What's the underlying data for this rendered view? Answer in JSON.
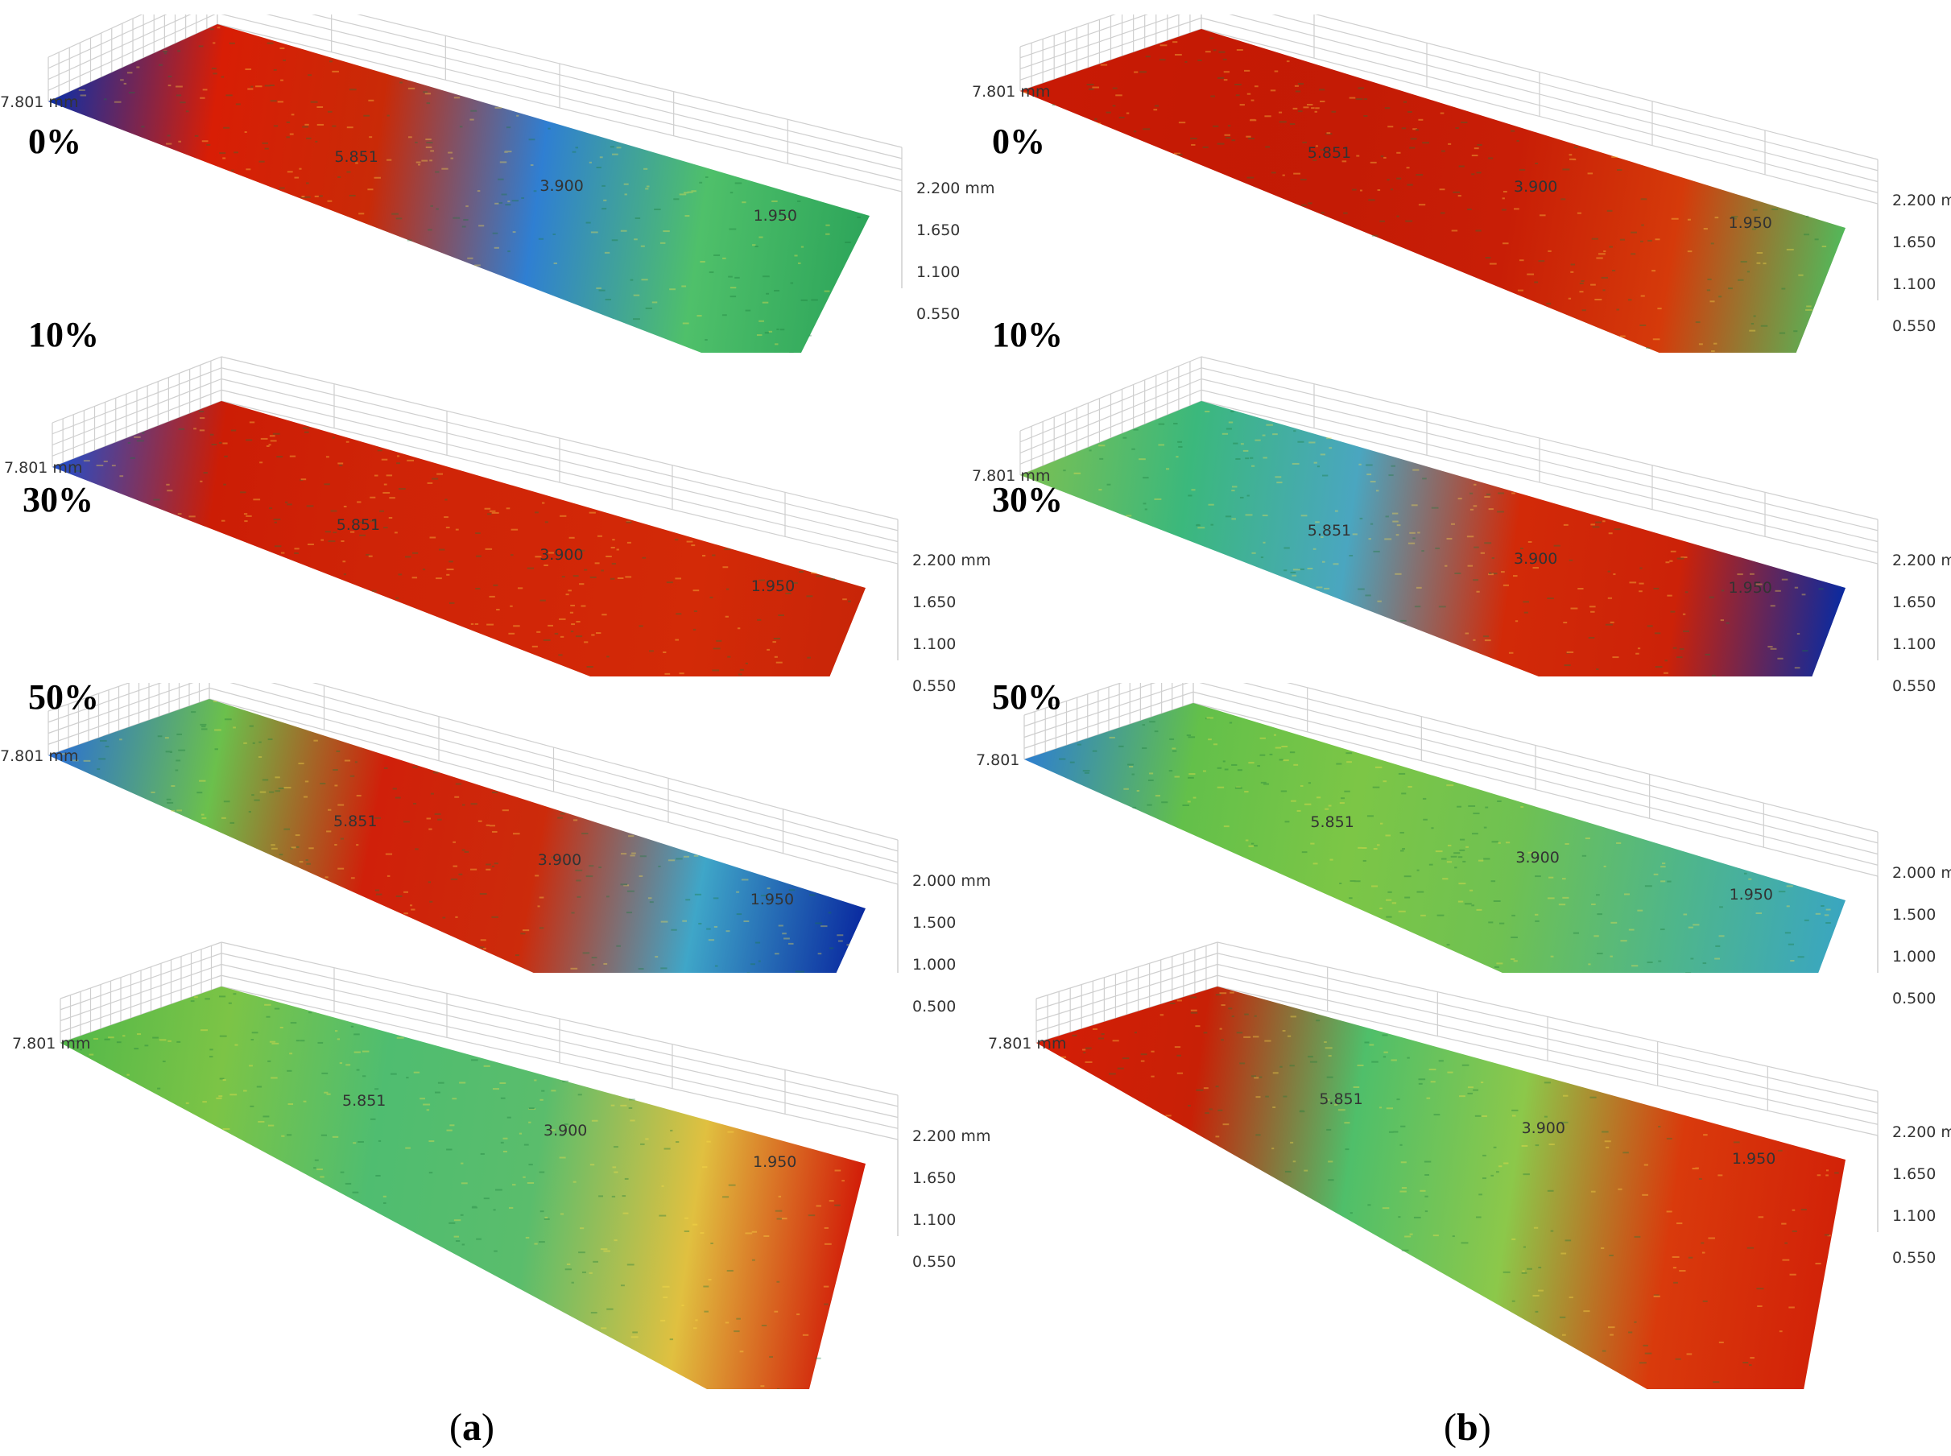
{
  "figure": {
    "subfigures": [
      {
        "caption": {
          "open": "(",
          "letter": "a",
          "close": ")"
        },
        "panels": [
          {
            "label": "0%",
            "y_ticks": [
              "7.801 mm",
              "5.851",
              "3.900",
              "1.950"
            ],
            "z_ticks": [
              "2.200 mm",
              "1.650",
              "1.100",
              "0.550"
            ],
            "colors": [
              "#0a2ea8",
              "#d81e05",
              "#c92a07",
              "#2f7fd2",
              "#4fc06a",
              "#2da55a"
            ]
          },
          {
            "label": "10%",
            "y_ticks": [
              "7.801 mm",
              "5.851",
              "3.900",
              "1.950"
            ],
            "z_ticks": [
              "2.200 mm",
              "1.650",
              "1.100",
              "0.550"
            ],
            "colors": [
              "#1e4fd0",
              "#cc1d05",
              "#cf2407",
              "#d12607",
              "#d32a07",
              "#c82508"
            ]
          },
          {
            "label": "30%",
            "y_ticks": [
              "7.801 mm",
              "5.851",
              "3.900",
              "1.950"
            ],
            "z_ticks": [
              "2.000 mm",
              "1.500",
              "1.000",
              "0.500"
            ],
            "colors": [
              "#2a6fd6",
              "#6bc04c",
              "#d0200a",
              "#cc2b0b",
              "#3fa6c8",
              "#0a2aa0"
            ]
          },
          {
            "label": "50%",
            "y_ticks": [
              "7.801 mm",
              "5.851",
              "3.900",
              "1.950"
            ],
            "z_ticks": [
              "2.200 mm",
              "1.650",
              "1.100",
              "0.550"
            ],
            "colors": [
              "#53b84a",
              "#7cc446",
              "#4fbd70",
              "#5abd6c",
              "#e0c040",
              "#d21c08"
            ]
          }
        ]
      },
      {
        "caption": {
          "open": "(",
          "letter": "b",
          "close": ")"
        },
        "panels": [
          {
            "label": "0%",
            "y_ticks": [
              "7.801 mm",
              "5.851",
              "3.900",
              "1.950"
            ],
            "z_ticks": [
              "2.200 mm",
              "1.650",
              "1.100",
              "0.550"
            ],
            "colors": [
              "#c91a05",
              "#c51a04",
              "#c41b05",
              "#c81e06",
              "#d53a0a",
              "#53b85a"
            ]
          },
          {
            "label": "10%",
            "y_ticks": [
              "7.801 mm",
              "5.851",
              "3.900",
              "1.950"
            ],
            "z_ticks": [
              "2.200 mm",
              "1.650",
              "1.100",
              "0.550"
            ],
            "colors": [
              "#7cc052",
              "#3bb87c",
              "#4aa6c0",
              "#d22a08",
              "#cc2208",
              "#0a2aa0"
            ]
          },
          {
            "label": "30%",
            "y_ticks": [
              "7.801",
              "5.851",
              "3.900",
              "1.950"
            ],
            "z_ticks": [
              "2.000 mm",
              "1.500",
              "1.000",
              "0.500"
            ],
            "colors": [
              "#2e7fd0",
              "#63c04a",
              "#7cc646",
              "#6fc152",
              "#4fb68a",
              "#3aa6c0"
            ]
          },
          {
            "label": "50%",
            "y_ticks": [
              "7.801 mm",
              "5.851",
              "3.900",
              "1.950"
            ],
            "z_ticks": [
              "2.200 mm",
              "1.650",
              "1.100",
              "0.550"
            ],
            "colors": [
              "#d41e06",
              "#c82006",
              "#4fbf6a",
              "#8cc84a",
              "#d93a0c",
              "#d22208"
            ]
          }
        ]
      }
    ]
  }
}
